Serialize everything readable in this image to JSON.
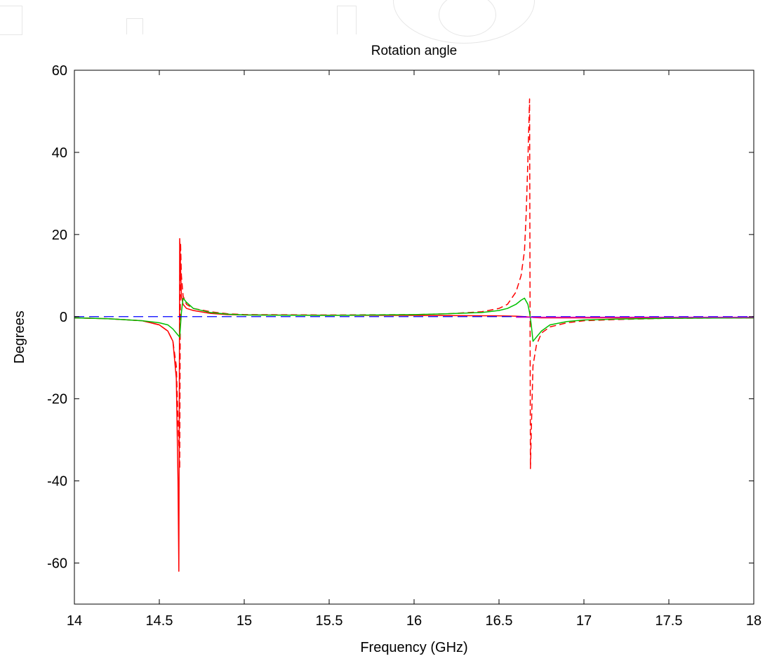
{
  "chart_data": {
    "type": "line",
    "title": "Rotation angle",
    "xlabel": "Frequency (GHz)",
    "ylabel": "Degrees",
    "xlim": [
      14,
      18
    ],
    "ylim": [
      -70,
      60
    ],
    "xticks": [
      14,
      14.5,
      15,
      15.5,
      16,
      16.5,
      17,
      17.5,
      18
    ],
    "yticks": [
      -60,
      -40,
      -20,
      0,
      20,
      40,
      60
    ],
    "xtick_labels": [
      "14",
      "14.5",
      "15",
      "15.5",
      "16",
      "16.5",
      "17",
      "17.5",
      "18"
    ],
    "ytick_labels": [
      "-60",
      "-40",
      "-20",
      "0",
      "20",
      "40",
      "60"
    ],
    "grid": false,
    "colors": {
      "red_solid": "#ff0000",
      "red_dashed": "#ff0000",
      "green": "#00c000",
      "blue": "#0000ff",
      "magenta": "#cc00cc"
    },
    "series": [
      {
        "color": "red_solid",
        "style": "solid",
        "x": [
          14,
          14.2,
          14.4,
          14.5,
          14.55,
          14.58,
          14.6,
          14.61,
          14.615,
          14.62,
          14.625,
          14.63,
          14.64,
          14.66,
          14.7,
          14.8,
          14.9,
          15,
          16,
          16.5,
          16.6,
          16.65,
          16.68,
          16.7,
          16.75,
          16.8,
          16.9,
          17,
          17.3,
          17.6,
          18
        ],
        "y": [
          -0.3,
          -0.5,
          -1,
          -2,
          -3.5,
          -6,
          -15,
          -40,
          -62,
          19,
          12,
          5,
          3,
          2,
          1.5,
          0.8,
          0.5,
          0.4,
          0.3,
          0.2,
          0.1,
          0,
          -0.1,
          -0.2,
          -0.3,
          -0.3,
          -0.3,
          -0.3,
          -0.3,
          -0.3,
          -0.3
        ]
      },
      {
        "color": "red_dashed",
        "style": "dashed",
        "x": [
          14,
          14.2,
          14.4,
          14.5,
          14.55,
          14.58,
          14.6,
          14.61,
          14.62,
          14.625,
          14.63,
          14.64,
          14.66,
          14.7,
          14.8,
          14.9,
          15,
          15.5,
          16,
          16.2,
          16.4,
          16.5,
          16.55,
          16.6,
          16.63,
          16.65,
          16.66,
          16.67,
          16.68,
          16.685,
          16.69,
          16.7,
          16.72,
          16.75,
          16.8,
          16.9,
          17,
          17.2,
          17.5,
          18
        ],
        "y": [
          -0.3,
          -0.5,
          -1,
          -2,
          -3.5,
          -6,
          -12,
          -25,
          -37,
          18,
          10,
          5,
          3,
          2,
          1.2,
          0.7,
          0.5,
          0.4,
          0.5,
          0.7,
          1.2,
          2,
          3,
          6,
          10,
          16,
          25,
          38,
          53,
          -37,
          -28,
          -12,
          -7,
          -4,
          -2.5,
          -1.5,
          -1,
          -0.7,
          -0.4,
          -0.3
        ]
      },
      {
        "color": "green",
        "style": "solid",
        "x": [
          14,
          14.2,
          14.4,
          14.5,
          14.55,
          14.58,
          14.6,
          14.62,
          14.63,
          14.64,
          14.66,
          14.7,
          14.8,
          14.9,
          15,
          15.5,
          16,
          16.2,
          16.4,
          16.5,
          16.55,
          16.6,
          16.63,
          16.65,
          16.67,
          16.68,
          16.69,
          16.7,
          16.72,
          16.75,
          16.8,
          16.9,
          17,
          17.2,
          17.5,
          18
        ],
        "y": [
          -0.3,
          -0.5,
          -1,
          -1.5,
          -2,
          -3,
          -4,
          -5,
          1,
          4.5,
          3.5,
          2,
          1,
          0.6,
          0.4,
          0.3,
          0.5,
          0.7,
          1,
          1.5,
          2,
          3,
          4,
          4.5,
          3,
          1,
          -2,
          -6,
          -5,
          -3.5,
          -2,
          -1.2,
          -0.8,
          -0.6,
          -0.4,
          -0.3
        ]
      },
      {
        "color": "blue",
        "style": "dashed",
        "x": [
          14,
          18
        ],
        "y": [
          0,
          0
        ]
      },
      {
        "color": "magenta",
        "style": "solid",
        "x": [
          16.6,
          18
        ],
        "y": [
          -0.15,
          -0.15
        ]
      }
    ]
  }
}
